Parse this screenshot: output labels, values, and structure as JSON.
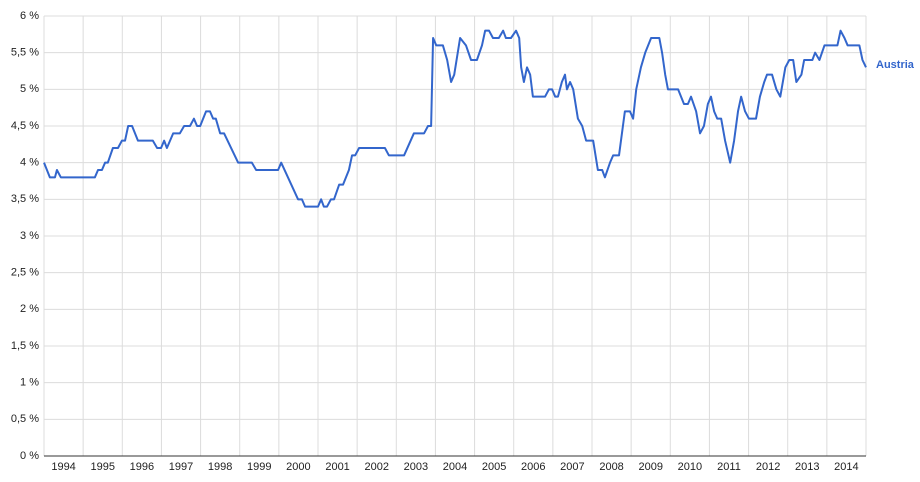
{
  "chart_data": {
    "type": "line",
    "x": [
      1994.0,
      1994.15,
      1994.28,
      1994.33,
      1994.43,
      1995.3,
      1995.38,
      1995.48,
      1995.56,
      1995.63,
      1995.76,
      1995.89,
      1995.99,
      1996.07,
      1996.15,
      1996.25,
      1996.4,
      1996.78,
      1996.89,
      1996.99,
      1997.07,
      1997.14,
      1997.3,
      1997.47,
      1997.58,
      1997.73,
      1997.83,
      1997.91,
      1997.99,
      1998.14,
      1998.24,
      1998.32,
      1998.39,
      1998.5,
      1998.6,
      1998.96,
      1999.31,
      1999.42,
      1999.98,
      2000.06,
      2000.49,
      2000.59,
      2000.67,
      2001.0,
      2001.08,
      2001.15,
      2001.23,
      2001.33,
      2001.41,
      2001.54,
      2001.64,
      2001.79,
      2001.87,
      2001.95,
      2002.05,
      2002.71,
      2002.81,
      2003.2,
      2003.45,
      2003.71,
      2003.81,
      2003.89,
      2003.94,
      2004.02,
      2004.19,
      2004.3,
      2004.4,
      2004.48,
      2004.63,
      2004.78,
      2004.91,
      2005.06,
      2005.19,
      2005.27,
      2005.37,
      2005.47,
      2005.62,
      2005.73,
      2005.8,
      2005.93,
      2006.06,
      2006.14,
      2006.19,
      2006.26,
      2006.34,
      2006.42,
      2006.49,
      2006.8,
      2006.9,
      2006.98,
      2007.06,
      2007.13,
      2007.23,
      2007.31,
      2007.36,
      2007.44,
      2007.52,
      2007.64,
      2007.75,
      2007.85,
      2008.03,
      2008.15,
      2008.26,
      2008.33,
      2008.46,
      2008.54,
      2008.69,
      2008.84,
      2008.97,
      2009.05,
      2009.13,
      2009.25,
      2009.36,
      2009.51,
      2009.72,
      2009.79,
      2009.87,
      2009.94,
      2010.2,
      2010.35,
      2010.45,
      2010.53,
      2010.66,
      2010.76,
      2010.86,
      2010.96,
      2011.04,
      2011.12,
      2011.2,
      2011.3,
      2011.4,
      2011.53,
      2011.63,
      2011.73,
      2011.81,
      2011.91,
      2012.01,
      2012.19,
      2012.29,
      2012.4,
      2012.47,
      2012.6,
      2012.71,
      2012.81,
      2012.94,
      2013.04,
      2013.14,
      2013.22,
      2013.35,
      2013.42,
      2013.63,
      2013.7,
      2013.81,
      2013.94,
      2014.27,
      2014.35,
      2014.45,
      2014.53,
      2014.83,
      2014.91,
      2015.0
    ],
    "series": [
      {
        "name": "Austria",
        "color": "#3366cc",
        "values": [
          4.0,
          3.8,
          3.8,
          3.9,
          3.8,
          3.8,
          3.9,
          3.9,
          4.0,
          4.0,
          4.2,
          4.2,
          4.3,
          4.3,
          4.5,
          4.5,
          4.3,
          4.3,
          4.2,
          4.2,
          4.3,
          4.2,
          4.4,
          4.4,
          4.5,
          4.5,
          4.6,
          4.5,
          4.5,
          4.7,
          4.7,
          4.6,
          4.6,
          4.4,
          4.4,
          4.0,
          4.0,
          3.9,
          3.9,
          4.0,
          3.5,
          3.5,
          3.4,
          3.4,
          3.5,
          3.4,
          3.4,
          3.5,
          3.5,
          3.7,
          3.7,
          3.9,
          4.1,
          4.1,
          4.2,
          4.2,
          4.1,
          4.1,
          4.4,
          4.4,
          4.5,
          4.5,
          5.7,
          5.6,
          5.6,
          5.4,
          5.1,
          5.2,
          5.7,
          5.6,
          5.4,
          5.4,
          5.6,
          5.8,
          5.8,
          5.7,
          5.7,
          5.8,
          5.7,
          5.7,
          5.8,
          5.7,
          5.3,
          5.1,
          5.3,
          5.2,
          4.9,
          4.9,
          5.0,
          5.0,
          4.9,
          4.9,
          5.1,
          5.2,
          5.0,
          5.1,
          5.0,
          4.6,
          4.5,
          4.3,
          4.3,
          3.9,
          3.9,
          3.8,
          4.0,
          4.1,
          4.1,
          4.7,
          4.7,
          4.6,
          5.0,
          5.3,
          5.5,
          5.7,
          5.7,
          5.5,
          5.2,
          5.0,
          5.0,
          4.8,
          4.8,
          4.9,
          4.7,
          4.4,
          4.5,
          4.8,
          4.9,
          4.7,
          4.6,
          4.6,
          4.3,
          4.0,
          4.3,
          4.7,
          4.9,
          4.7,
          4.6,
          4.6,
          4.9,
          5.1,
          5.2,
          5.2,
          5.0,
          4.9,
          5.3,
          5.4,
          5.4,
          5.1,
          5.2,
          5.4,
          5.4,
          5.5,
          5.4,
          5.6,
          5.6,
          5.8,
          5.7,
          5.6,
          5.6,
          5.4,
          5.3
        ]
      }
    ],
    "xlim": [
      1994,
      2015
    ],
    "xticks": [
      1994,
      1995,
      1996,
      1997,
      1998,
      1999,
      2000,
      2001,
      2002,
      2003,
      2004,
      2005,
      2006,
      2007,
      2008,
      2009,
      2010,
      2011,
      2012,
      2013,
      2014,
      2015
    ],
    "year_labels": [
      "1994",
      "1995",
      "1996",
      "1997",
      "1998",
      "1999",
      "2000",
      "2001",
      "2002",
      "2003",
      "2004",
      "2005",
      "2006",
      "2007",
      "2008",
      "2009",
      "2010",
      "2011",
      "2012",
      "2013",
      "2014"
    ],
    "ylim": [
      0,
      6
    ],
    "yticks": [
      {
        "value": 0,
        "label": "0 %"
      },
      {
        "value": 0.5,
        "label": "0,5 %"
      },
      {
        "value": 1,
        "label": "1 %"
      },
      {
        "value": 1.5,
        "label": "1,5 %"
      },
      {
        "value": 2,
        "label": "2 %"
      },
      {
        "value": 2.5,
        "label": "2,5 %"
      },
      {
        "value": 3,
        "label": "3 %"
      },
      {
        "value": 3.5,
        "label": "3,5 %"
      },
      {
        "value": 4,
        "label": "4 %"
      },
      {
        "value": 4.5,
        "label": "4,5 %"
      },
      {
        "value": 5,
        "label": "5 %"
      },
      {
        "value": 5.5,
        "label": "5,5 %"
      },
      {
        "value": 6,
        "label": "6 %"
      }
    ],
    "grid": true,
    "legend": "right"
  }
}
